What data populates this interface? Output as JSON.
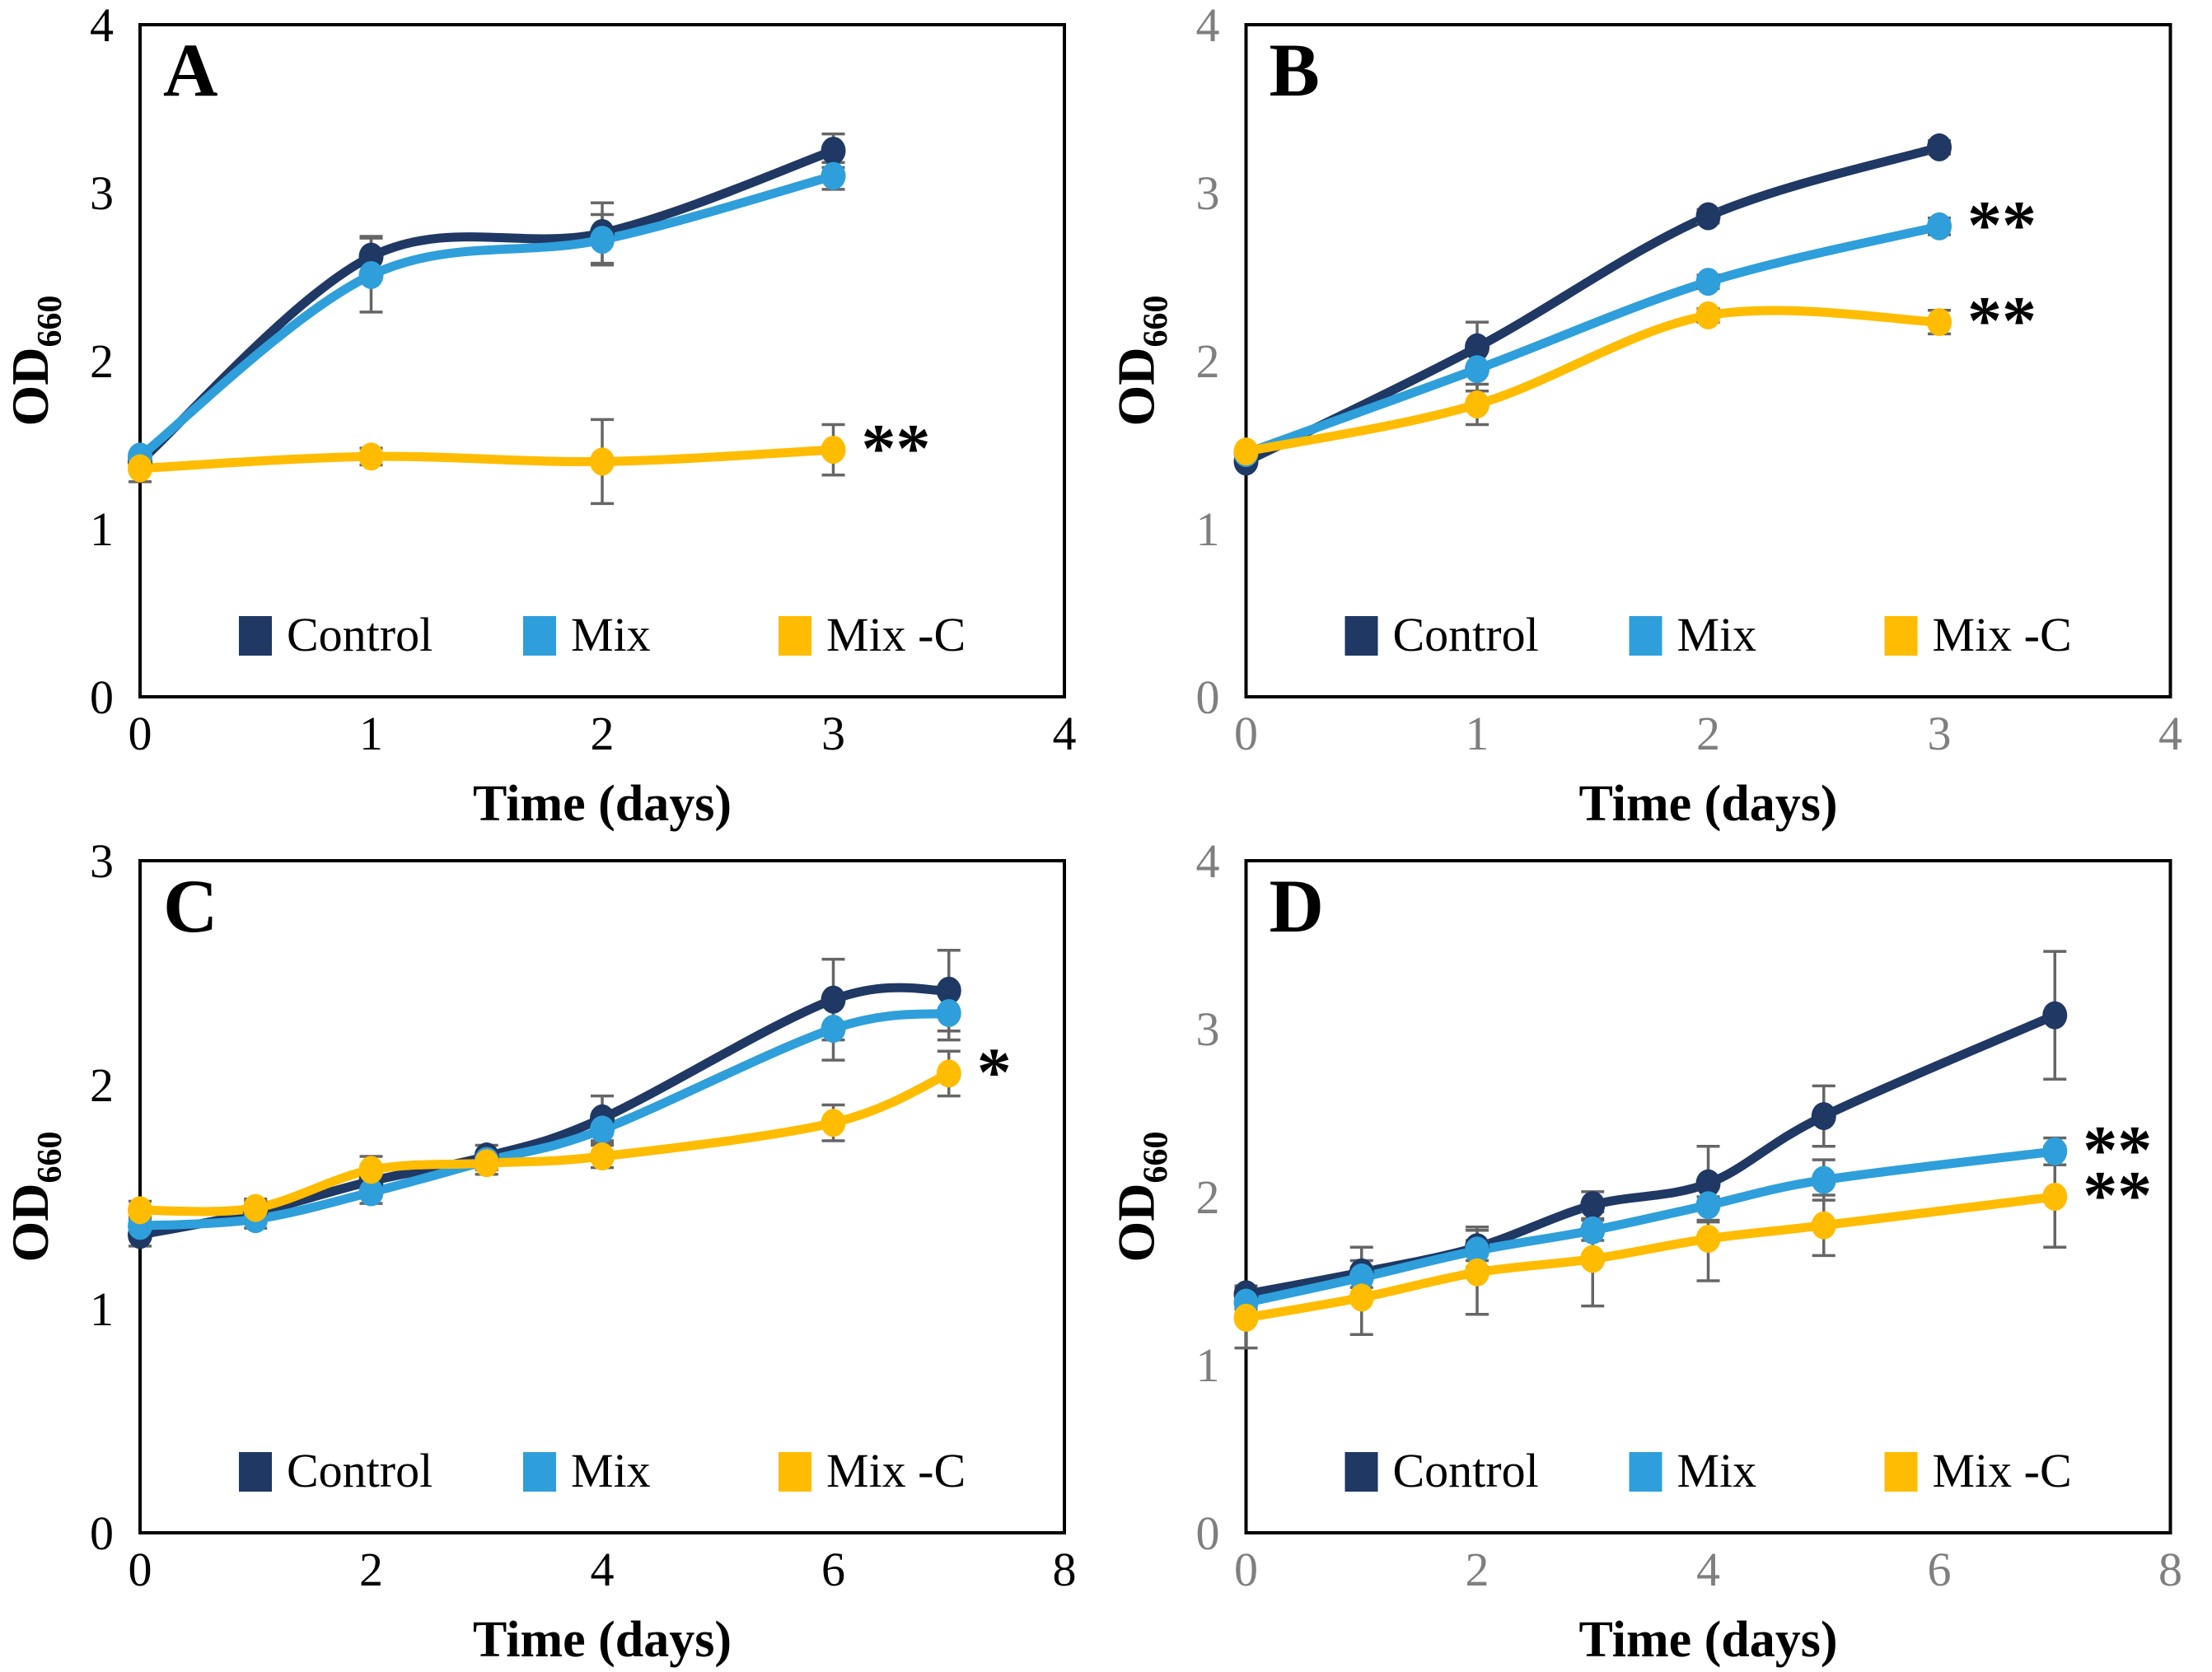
{
  "figure": {
    "x_axis_label": "Time (days)",
    "y_axis_label_main": "OD",
    "y_axis_label_subscript": "660",
    "legend_labels": [
      "Control",
      "Mix",
      "Mix -C"
    ],
    "colors": {
      "control": "#1F3864",
      "mix": "#2E9FDA",
      "mix_c": "#FFBC00",
      "error_bar": "#666666",
      "axis": "#000000",
      "annotation": "#000000",
      "tick_label_black": "#000000",
      "tick_label_grey": "#7F7F7F"
    }
  },
  "chart_data": [
    {
      "type": "line",
      "panel_label": "A",
      "xlabel": "Time (days)",
      "ylabel": "OD",
      "ylabel_subscript": "660",
      "xlim": [
        0,
        4
      ],
      "ylim": [
        0,
        4
      ],
      "x_ticks": [
        0,
        1,
        2,
        3,
        4
      ],
      "y_ticks": [
        0,
        1,
        2,
        3,
        4
      ],
      "tick_label_color": "#000000",
      "x": [
        0,
        1,
        2,
        3
      ],
      "series": [
        {
          "name": "Control",
          "color": "#1F3864",
          "values": [
            1.4,
            2.62,
            2.76,
            3.25
          ],
          "errors": [
            0,
            0.12,
            0.18,
            0.1
          ],
          "end_annotation": ""
        },
        {
          "name": "Mix",
          "color": "#2E9FDA",
          "values": [
            1.43,
            2.51,
            2.72,
            3.1
          ],
          "errors": [
            0,
            0.22,
            0.15,
            0.08
          ],
          "end_annotation": ""
        },
        {
          "name": "Mix -C",
          "color": "#FFBC00",
          "values": [
            1.36,
            1.43,
            1.4,
            1.47
          ],
          "errors": [
            0.08,
            0.05,
            0.25,
            0.15
          ],
          "end_annotation": "**"
        }
      ],
      "legend": [
        "Control",
        "Mix",
        "Mix -C"
      ]
    },
    {
      "type": "line",
      "panel_label": "B",
      "xlabel": "Time (days)",
      "ylabel": "OD",
      "ylabel_subscript": "660",
      "xlim": [
        0,
        4
      ],
      "ylim": [
        0,
        4
      ],
      "x_ticks": [
        0,
        1,
        2,
        3,
        4
      ],
      "y_ticks": [
        0,
        1,
        2,
        3,
        4
      ],
      "tick_label_color": "#7F7F7F",
      "x": [
        0,
        1,
        2,
        3
      ],
      "series": [
        {
          "name": "Control",
          "color": "#1F3864",
          "values": [
            1.4,
            2.08,
            2.86,
            3.27
          ],
          "errors": [
            0,
            0.15,
            0.04,
            0.04
          ],
          "end_annotation": ""
        },
        {
          "name": "Mix",
          "color": "#2E9FDA",
          "values": [
            1.45,
            1.95,
            2.47,
            2.8
          ],
          "errors": [
            0,
            0.13,
            0.04,
            0.05
          ],
          "end_annotation": "**"
        },
        {
          "name": "Mix -C",
          "color": "#FFBC00",
          "values": [
            1.46,
            1.74,
            2.27,
            2.23
          ],
          "errors": [
            0,
            0.12,
            0.04,
            0.07
          ],
          "end_annotation": "**"
        }
      ],
      "legend": [
        "Control",
        "Mix",
        "Mix -C"
      ]
    },
    {
      "type": "line",
      "panel_label": "C",
      "xlabel": "Time (days)",
      "ylabel": "OD",
      "ylabel_subscript": "660",
      "xlim": [
        0,
        8
      ],
      "ylim": [
        0,
        3
      ],
      "x_ticks": [
        0,
        2,
        4,
        6,
        8
      ],
      "y_ticks": [
        0,
        1,
        2,
        3
      ],
      "tick_label_color": "#000000",
      "x": [
        0,
        1,
        2,
        3,
        4,
        6,
        7
      ],
      "series": [
        {
          "name": "Control",
          "color": "#1F3864",
          "values": [
            1.33,
            1.43,
            1.57,
            1.68,
            1.85,
            2.38,
            2.42
          ],
          "errors": [
            0.05,
            0.05,
            0.07,
            0.05,
            0.1,
            0.18,
            0.18
          ],
          "end_annotation": ""
        },
        {
          "name": "Mix",
          "color": "#2E9FDA",
          "values": [
            1.37,
            1.4,
            1.52,
            1.66,
            1.8,
            2.25,
            2.32
          ],
          "errors": [
            0.04,
            0.04,
            0.05,
            0.04,
            0.06,
            0.14,
            0.12
          ],
          "end_annotation": ""
        },
        {
          "name": "Mix -C",
          "color": "#FFBC00",
          "values": [
            1.44,
            1.45,
            1.62,
            1.65,
            1.68,
            1.83,
            2.05
          ],
          "errors": [
            0.04,
            0.04,
            0.06,
            0.05,
            0.05,
            0.08,
            0.1
          ],
          "end_annotation": "*"
        }
      ],
      "legend": [
        "Control",
        "Mix",
        "Mix -C"
      ]
    },
    {
      "type": "line",
      "panel_label": "D",
      "xlabel": "Time (days)",
      "ylabel": "OD",
      "ylabel_subscript": "660",
      "xlim": [
        0,
        8
      ],
      "ylim": [
        0,
        4
      ],
      "x_ticks": [
        0,
        2,
        4,
        6,
        8
      ],
      "y_ticks": [
        0,
        1,
        2,
        3,
        4
      ],
      "tick_label_color": "#7F7F7F",
      "x": [
        0,
        1,
        2,
        3,
        4,
        5,
        7
      ],
      "series": [
        {
          "name": "Control",
          "color": "#1F3864",
          "values": [
            1.42,
            1.55,
            1.7,
            1.95,
            2.08,
            2.48,
            3.08
          ],
          "errors": [
            0.05,
            0.15,
            0.12,
            0.08,
            0.22,
            0.18,
            0.38
          ],
          "end_annotation": ""
        },
        {
          "name": "Mix",
          "color": "#2E9FDA",
          "values": [
            1.37,
            1.52,
            1.68,
            1.8,
            1.95,
            2.1,
            2.27
          ],
          "errors": [
            0.04,
            0.06,
            0.06,
            0.06,
            0.1,
            0.12,
            0.08
          ],
          "end_annotation": "**"
        },
        {
          "name": "Mix -C",
          "color": "#FFBC00",
          "values": [
            1.28,
            1.4,
            1.55,
            1.63,
            1.75,
            1.83,
            2.0
          ],
          "errors": [
            0.18,
            0.22,
            0.25,
            0.28,
            0.25,
            0.18,
            0.3
          ],
          "end_annotation": "**"
        }
      ],
      "legend": [
        "Control",
        "Mix",
        "Mix -C"
      ]
    }
  ]
}
